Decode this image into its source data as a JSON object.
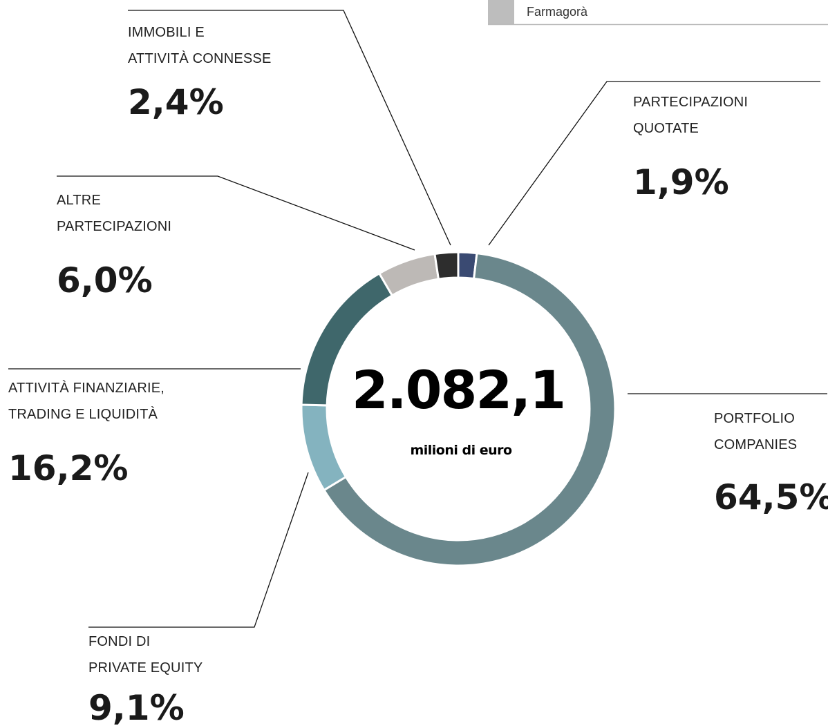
{
  "chart_data": {
    "type": "pie",
    "donut": true,
    "categories": [
      "PARTECIPAZIONI\nQUOTATE",
      "PORTFOLIO\nCOMPANIES",
      "FONDI DI\nPRIVATE EQUITY",
      "ATTIVITÀ FINANZIARIE,\nTRADING E LIQUIDITÀ",
      "ALTRE\nPARTECIPAZIONI",
      "IMMOBILI E\nATTIVITÀ CONNESSE"
    ],
    "values": [
      1.9,
      64.5,
      9.1,
      16.2,
      6.0,
      2.4
    ],
    "value_labels": [
      "1,9%",
      "64,5%",
      "9,1%",
      "16,2%",
      "6,0%",
      "2,4%"
    ],
    "colors": [
      "#3a4a72",
      "#6a878c",
      "#84b3bf",
      "#3f676b",
      "#bdb9b6",
      "#2d2d2d"
    ],
    "total": "2.082,1",
    "total_unit": "milioni di euro",
    "legend": [
      {
        "label": "Farmagorà",
        "color": "#bdbdbd"
      }
    ]
  }
}
